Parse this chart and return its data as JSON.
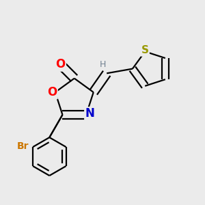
{
  "bg_color": "#ebebeb",
  "bond_color": "#000000",
  "bond_width": 1.6,
  "dbo": 0.018,
  "atom_colors": {
    "O": "#ff0000",
    "N": "#0000cc",
    "S": "#999900",
    "Br": "#cc7700",
    "H": "#708090",
    "C": "#000000"
  }
}
